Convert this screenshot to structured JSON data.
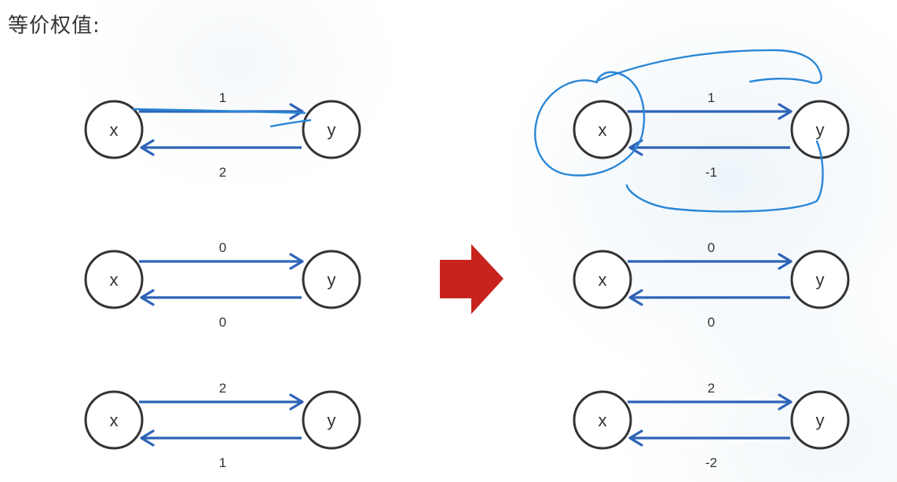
{
  "title": "等价权值:",
  "colors": {
    "node_stroke": "#333333",
    "edge": "#2e63b8",
    "arrow": "#c8231c",
    "ink": "#2a86d6"
  },
  "left_pairs": [
    {
      "from_label": "x",
      "to_label": "y",
      "forward_weight": "1",
      "backward_weight": "2"
    },
    {
      "from_label": "x",
      "to_label": "y",
      "forward_weight": "0",
      "backward_weight": "0"
    },
    {
      "from_label": "x",
      "to_label": "y",
      "forward_weight": "2",
      "backward_weight": "1"
    }
  ],
  "right_pairs": [
    {
      "from_label": "x",
      "to_label": "y",
      "forward_weight": "1",
      "backward_weight": "-1"
    },
    {
      "from_label": "x",
      "to_label": "y",
      "forward_weight": "0",
      "backward_weight": "0"
    },
    {
      "from_label": "x",
      "to_label": "y",
      "forward_weight": "2",
      "backward_weight": "-2"
    }
  ],
  "transform_arrow_icon": "right-arrow-icon"
}
